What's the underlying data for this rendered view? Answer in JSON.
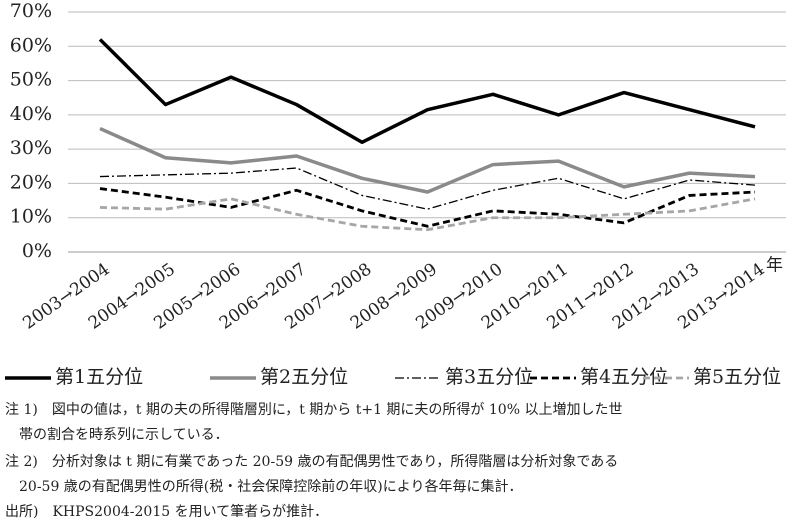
{
  "chart_data": {
    "type": "line",
    "categories": [
      "2003→2004",
      "2004→2005",
      "2005→2006",
      "2006→2007",
      "2007→2008",
      "2008→2009",
      "2009→2010",
      "2010→2011",
      "2011→2012",
      "2012→2013",
      "2013→2014"
    ],
    "x_label": "年",
    "series": [
      {
        "name": "第1五分位",
        "color": "#000000",
        "dash": "solid",
        "width": 3.5,
        "values": [
          62,
          43,
          51,
          43,
          32,
          41.5,
          46,
          40,
          46.5,
          41.5,
          36.5
        ]
      },
      {
        "name": "第2五分位",
        "color": "#8a8a8a",
        "dash": "solid",
        "width": 3.5,
        "values": [
          36,
          27.5,
          26,
          28,
          21.5,
          17.5,
          25.5,
          26.5,
          19,
          23,
          22
        ]
      },
      {
        "name": "第3五分位",
        "color": "#000000",
        "dash": "dash-dot",
        "width": 1.3,
        "values": [
          22,
          22.5,
          23,
          24.5,
          16.5,
          12.5,
          18,
          21.5,
          15.5,
          21,
          19.5
        ]
      },
      {
        "name": "第4五分位",
        "color": "#000000",
        "dash": "dash",
        "width": 2.8,
        "values": [
          18.5,
          16,
          13,
          18,
          12,
          7.5,
          12,
          11,
          8.5,
          16.5,
          17.5
        ]
      },
      {
        "name": "第5五分位",
        "color": "#a6a6a6",
        "dash": "dash",
        "width": 2.8,
        "values": [
          13,
          12.5,
          15.5,
          11,
          7.5,
          6.5,
          10,
          10,
          11,
          12,
          15.5
        ]
      }
    ],
    "ylim": [
      0,
      70
    ],
    "yticks": [
      {
        "value": 0,
        "label": "0%"
      },
      {
        "value": 10,
        "label": "10%"
      },
      {
        "value": 20,
        "label": "20%"
      },
      {
        "value": 30,
        "label": "30%"
      },
      {
        "value": 40,
        "label": "40%"
      },
      {
        "value": 50,
        "label": "50%"
      },
      {
        "value": 60,
        "label": "60%"
      },
      {
        "value": 70,
        "label": "70%"
      }
    ],
    "grid": true,
    "legend": "bottom"
  },
  "notes": [
    "注 1)　図中の値は，t 期の夫の所得階層別に，t 期から t+1 期に夫の所得が 10% 以上増加した世",
    "　帯の割合を時系列に示している．",
    "注 2)　分析対象は t 期に有業であった 20-59 歳の有配偶男性であり，所得階層は分析対象である",
    "　20-59 歳の有配偶男性の所得(税・社会保障控除前の年収)により各年毎に集計．",
    "出所)　KHPS2004-2015 を用いて筆者らが推計．"
  ]
}
